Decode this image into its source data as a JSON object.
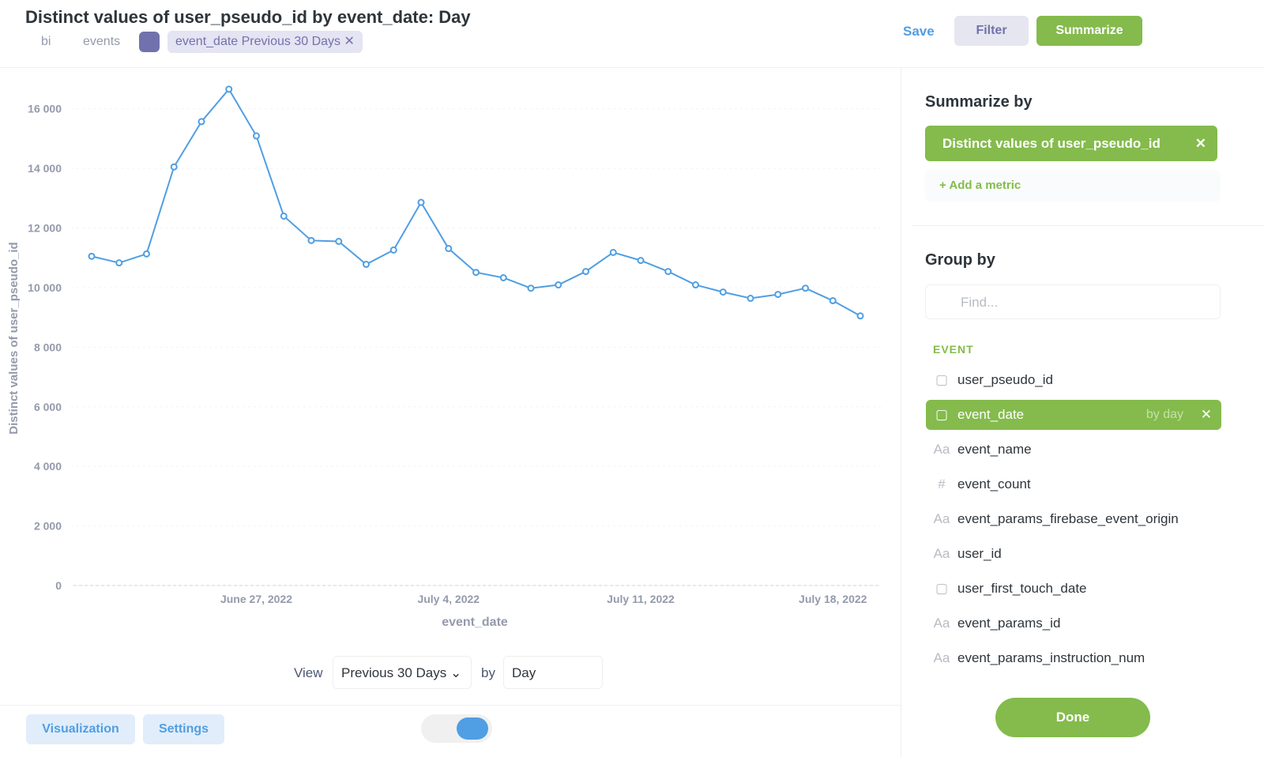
{
  "header": {
    "title": "Distinct values of user_pseudo_id by event_date: Day",
    "breadcrumbs": [
      "bi",
      "events"
    ],
    "filter": "event_date Previous 30 Days",
    "save": "Save",
    "filter_button": "Filter",
    "summarize_button": "Summarize"
  },
  "chart_data": {
    "type": "line",
    "xlabel": "event_date",
    "ylabel": "Distinct values of user_pseudo_id",
    "x": [
      "2022-06-21",
      "2022-06-22",
      "2022-06-23",
      "2022-06-24",
      "2022-06-25",
      "2022-06-26",
      "2022-06-27",
      "2022-06-28",
      "2022-06-29",
      "2022-06-30",
      "2022-07-01",
      "2022-07-02",
      "2022-07-03",
      "2022-07-04",
      "2022-07-05",
      "2022-07-06",
      "2022-07-07",
      "2022-07-08",
      "2022-07-09",
      "2022-07-10",
      "2022-07-11",
      "2022-07-12",
      "2022-07-13",
      "2022-07-14",
      "2022-07-15",
      "2022-07-16",
      "2022-07-17",
      "2022-07-18",
      "2022-07-19"
    ],
    "series": [
      {
        "color": "#509ee3",
        "values": [
          11050,
          10830,
          11130,
          14050,
          15570,
          16660,
          15090,
          12400,
          11580,
          11550,
          10780,
          11260,
          12860,
          11310,
          10510,
          10330,
          9980,
          10090,
          10540,
          11180,
          10910,
          10540,
          10090,
          9850,
          9640,
          9770,
          9980,
          9560,
          9050
        ]
      }
    ],
    "xlim": [
      "2022-06-21",
      "2022-07-19"
    ],
    "xticks": [
      {
        "value": "2022-06-27",
        "label": "June 27, 2022"
      },
      {
        "value": "2022-07-04",
        "label": "July 4, 2022"
      },
      {
        "value": "2022-07-11",
        "label": "July 11, 2022"
      },
      {
        "value": "2022-07-18",
        "label": "July 18, 2022"
      }
    ],
    "ylim": [
      0,
      17000
    ],
    "yticks": [
      0,
      {
        "value": 2000,
        "label": "2 000"
      },
      {
        "value": 4000,
        "label": "4 000"
      },
      {
        "value": 6000,
        "label": "6 000"
      },
      {
        "value": 8000,
        "label": "8 000"
      },
      {
        "value": 10000,
        "label": "10 000"
      },
      {
        "value": 12000,
        "label": "12 000"
      },
      {
        "value": 14000,
        "label": "14 000"
      },
      {
        "value": 16000,
        "label": "16 000"
      }
    ],
    "grid": true
  },
  "view_controls": {
    "view_label": "View",
    "range": "Previous 30 Days",
    "by_label": "by",
    "unit": "Day"
  },
  "footer": {
    "visualization": "Visualization",
    "settings": "Settings"
  },
  "sidebar": {
    "summarize_title": "Summarize by",
    "metric": "Distinct values of user_pseudo_id",
    "add_metric": "Add a metric",
    "group_title": "Group by",
    "search_placeholder": "Find...",
    "section": "EVENT",
    "fields": [
      {
        "name": "user_pseudo_id"
      },
      {
        "name": "event_date",
        "suffix": "by day"
      },
      {
        "icon": "Aa",
        "name": "event_name"
      },
      {
        "icon": "#",
        "name": "event_count"
      },
      {
        "icon": "Aa",
        "name": "event_params_firebase_event_origin"
      },
      {
        "icon": "Aa",
        "name": "user_id"
      },
      {
        "name": "user_first_touch_date"
      },
      {
        "icon": "Aa",
        "name": "event_params_id"
      },
      {
        "icon": "Aa",
        "name": "event_params_instruction_num"
      }
    ],
    "done": "Done"
  }
}
